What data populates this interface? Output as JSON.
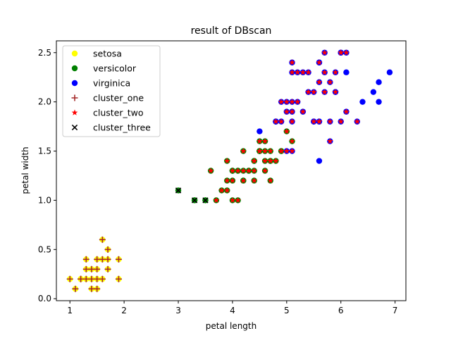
{
  "chart_data": {
    "type": "scatter",
    "title": "result of DBscan",
    "xlabel": "petal length",
    "ylabel": "petal width",
    "xlim": [
      0.75,
      7.2
    ],
    "ylim": [
      -0.02,
      2.62
    ],
    "xticks": [
      1,
      2,
      3,
      4,
      5,
      6,
      7
    ],
    "yticks": [
      0.0,
      0.5,
      1.0,
      1.5,
      2.0,
      2.5
    ],
    "xtick_labels": [
      "1",
      "2",
      "3",
      "4",
      "5",
      "6",
      "7"
    ],
    "ytick_labels": [
      "0.0",
      "0.5",
      "1.0",
      "1.5",
      "2.0",
      "2.5"
    ],
    "grid": false,
    "legend_position": "top-left",
    "series": [
      {
        "name": "setosa",
        "marker": "circle",
        "color": "#ffff00",
        "points": [
          [
            1.4,
            0.2
          ],
          [
            1.3,
            0.2
          ],
          [
            1.5,
            0.2
          ],
          [
            1.7,
            0.4
          ],
          [
            1.4,
            0.3
          ],
          [
            1.5,
            0.1
          ],
          [
            1.6,
            0.2
          ],
          [
            1.1,
            0.1
          ],
          [
            1.2,
            0.2
          ],
          [
            1.5,
            0.4
          ],
          [
            1.3,
            0.4
          ],
          [
            1.7,
            0.3
          ],
          [
            1.5,
            0.3
          ],
          [
            1.9,
            0.2
          ],
          [
            1.6,
            0.4
          ],
          [
            1.0,
            0.2
          ],
          [
            1.7,
            0.5
          ],
          [
            1.9,
            0.4
          ],
          [
            1.6,
            0.6
          ],
          [
            1.3,
            0.3
          ],
          [
            1.4,
            0.1
          ],
          [
            1.2,
            0.2
          ]
        ]
      },
      {
        "name": "versicolor",
        "marker": "circle",
        "color": "#008000",
        "points": [
          [
            4.7,
            1.4
          ],
          [
            4.5,
            1.5
          ],
          [
            4.9,
            1.5
          ],
          [
            4.0,
            1.3
          ],
          [
            4.6,
            1.5
          ],
          [
            3.3,
            1.0
          ],
          [
            4.6,
            1.3
          ],
          [
            3.9,
            1.4
          ],
          [
            3.5,
            1.0
          ],
          [
            4.2,
            1.5
          ],
          [
            4.0,
            1.0
          ],
          [
            4.7,
            1.4
          ],
          [
            3.6,
            1.3
          ],
          [
            4.4,
            1.4
          ],
          [
            4.5,
            1.5
          ],
          [
            4.1,
            1.0
          ],
          [
            4.5,
            1.5
          ],
          [
            3.9,
            1.1
          ],
          [
            4.8,
            1.8
          ],
          [
            4.0,
            1.3
          ],
          [
            4.9,
            1.5
          ],
          [
            4.7,
            1.2
          ],
          [
            4.3,
            1.3
          ],
          [
            4.4,
            1.4
          ],
          [
            4.8,
            1.4
          ],
          [
            5.0,
            1.7
          ],
          [
            4.5,
            1.5
          ],
          [
            3.5,
            1.0
          ],
          [
            3.8,
            1.1
          ],
          [
            3.7,
            1.0
          ],
          [
            3.9,
            1.2
          ],
          [
            5.1,
            1.6
          ],
          [
            4.5,
            1.5
          ],
          [
            4.5,
            1.6
          ],
          [
            4.7,
            1.5
          ],
          [
            4.4,
            1.3
          ],
          [
            4.1,
            1.3
          ],
          [
            4.0,
            1.3
          ],
          [
            4.4,
            1.2
          ],
          [
            4.6,
            1.4
          ],
          [
            4.0,
            1.2
          ],
          [
            3.3,
            1.0
          ],
          [
            4.2,
            1.3
          ],
          [
            4.2,
            1.2
          ],
          [
            4.3,
            1.3
          ],
          [
            3.0,
            1.1
          ],
          [
            4.1,
            1.3
          ],
          [
            4.6,
            1.6
          ],
          [
            4.2,
            1.2
          ]
        ]
      },
      {
        "name": "virginica",
        "marker": "circle",
        "color": "#0000ff",
        "points": [
          [
            6.0,
            2.5
          ],
          [
            5.1,
            1.9
          ],
          [
            5.9,
            2.1
          ],
          [
            5.6,
            1.8
          ],
          [
            5.8,
            2.2
          ],
          [
            6.6,
            2.1
          ],
          [
            4.5,
            1.7
          ],
          [
            6.3,
            1.8
          ],
          [
            5.8,
            1.8
          ],
          [
            6.1,
            2.5
          ],
          [
            5.1,
            2.0
          ],
          [
            5.3,
            1.9
          ],
          [
            5.5,
            2.1
          ],
          [
            5.0,
            2.0
          ],
          [
            5.1,
            2.4
          ],
          [
            5.3,
            2.3
          ],
          [
            5.5,
            1.8
          ],
          [
            6.7,
            2.2
          ],
          [
            6.9,
            2.3
          ],
          [
            5.0,
            1.5
          ],
          [
            5.7,
            2.3
          ],
          [
            4.9,
            2.0
          ],
          [
            6.7,
            2.0
          ],
          [
            4.9,
            1.8
          ],
          [
            5.7,
            2.1
          ],
          [
            6.0,
            1.8
          ],
          [
            4.8,
            1.8
          ],
          [
            5.8,
            1.6
          ],
          [
            6.1,
            1.9
          ],
          [
            6.4,
            2.0
          ],
          [
            5.6,
            2.2
          ],
          [
            5.1,
            1.5
          ],
          [
            5.6,
            1.4
          ],
          [
            6.1,
            2.3
          ],
          [
            5.6,
            2.4
          ],
          [
            5.5,
            1.8
          ],
          [
            5.4,
            2.1
          ],
          [
            5.6,
            2.4
          ],
          [
            5.1,
            2.3
          ],
          [
            5.9,
            2.3
          ],
          [
            5.7,
            2.5
          ],
          [
            5.2,
            2.3
          ],
          [
            5.0,
            1.9
          ],
          [
            5.2,
            2.0
          ],
          [
            5.4,
            2.3
          ],
          [
            5.1,
            1.8
          ],
          [
            4.8,
            1.8
          ],
          [
            6.0,
            2.5
          ],
          [
            5.6,
            1.8
          ],
          [
            5.9,
            2.1
          ]
        ]
      },
      {
        "name": "cluster_one",
        "marker": "plus",
        "color": "#a52a2a",
        "points": [
          [
            1.4,
            0.2
          ],
          [
            1.3,
            0.2
          ],
          [
            1.5,
            0.2
          ],
          [
            1.7,
            0.4
          ],
          [
            1.4,
            0.3
          ],
          [
            1.5,
            0.1
          ],
          [
            1.6,
            0.2
          ],
          [
            1.1,
            0.1
          ],
          [
            1.2,
            0.2
          ],
          [
            1.5,
            0.4
          ],
          [
            1.3,
            0.4
          ],
          [
            1.7,
            0.3
          ],
          [
            1.5,
            0.3
          ],
          [
            1.9,
            0.2
          ],
          [
            1.6,
            0.4
          ],
          [
            1.0,
            0.2
          ],
          [
            1.7,
            0.5
          ],
          [
            1.9,
            0.4
          ],
          [
            1.6,
            0.6
          ],
          [
            1.3,
            0.3
          ],
          [
            1.4,
            0.1
          ],
          [
            1.2,
            0.2
          ]
        ]
      },
      {
        "name": "cluster_two",
        "marker": "star",
        "color": "#ff0000",
        "points": [
          [
            4.7,
            1.4
          ],
          [
            4.5,
            1.5
          ],
          [
            4.9,
            1.5
          ],
          [
            4.0,
            1.3
          ],
          [
            4.6,
            1.5
          ],
          [
            4.6,
            1.3
          ],
          [
            3.9,
            1.4
          ],
          [
            4.2,
            1.5
          ],
          [
            4.0,
            1.0
          ],
          [
            4.7,
            1.4
          ],
          [
            3.6,
            1.3
          ],
          [
            4.4,
            1.4
          ],
          [
            4.5,
            1.5
          ],
          [
            4.1,
            1.0
          ],
          [
            3.9,
            1.1
          ],
          [
            4.8,
            1.8
          ],
          [
            4.9,
            1.5
          ],
          [
            4.7,
            1.2
          ],
          [
            4.3,
            1.3
          ],
          [
            4.4,
            1.4
          ],
          [
            4.8,
            1.4
          ],
          [
            5.0,
            1.7
          ],
          [
            3.8,
            1.1
          ],
          [
            3.7,
            1.0
          ],
          [
            3.9,
            1.2
          ],
          [
            5.1,
            1.6
          ],
          [
            4.5,
            1.6
          ],
          [
            4.7,
            1.5
          ],
          [
            4.4,
            1.3
          ],
          [
            4.1,
            1.3
          ],
          [
            4.4,
            1.2
          ],
          [
            4.6,
            1.4
          ],
          [
            4.0,
            1.2
          ],
          [
            4.2,
            1.3
          ],
          [
            4.2,
            1.2
          ],
          [
            4.6,
            1.6
          ],
          [
            6.0,
            2.5
          ],
          [
            5.1,
            1.9
          ],
          [
            5.9,
            2.1
          ],
          [
            5.6,
            1.8
          ],
          [
            5.8,
            2.2
          ],
          [
            6.3,
            1.8
          ],
          [
            5.8,
            1.8
          ],
          [
            6.1,
            2.5
          ],
          [
            5.1,
            2.0
          ],
          [
            5.3,
            1.9
          ],
          [
            5.5,
            2.1
          ],
          [
            5.0,
            2.0
          ],
          [
            5.1,
            2.4
          ],
          [
            5.3,
            2.3
          ],
          [
            5.5,
            1.8
          ],
          [
            5.0,
            1.5
          ],
          [
            5.7,
            2.3
          ],
          [
            4.9,
            2.0
          ],
          [
            4.9,
            1.8
          ],
          [
            5.7,
            2.1
          ],
          [
            6.0,
            1.8
          ],
          [
            5.8,
            1.6
          ],
          [
            6.1,
            1.9
          ],
          [
            5.6,
            2.2
          ],
          [
            5.1,
            1.5
          ],
          [
            5.6,
            2.4
          ],
          [
            5.4,
            2.1
          ],
          [
            5.1,
            2.3
          ],
          [
            5.9,
            2.3
          ],
          [
            5.7,
            2.5
          ],
          [
            5.2,
            2.3
          ],
          [
            5.2,
            2.0
          ],
          [
            5.4,
            2.3
          ],
          [
            5.1,
            1.8
          ],
          [
            6.0,
            2.5
          ],
          [
            5.6,
            1.8
          ],
          [
            5.0,
            1.9
          ]
        ]
      },
      {
        "name": "cluster_three",
        "marker": "x",
        "color": "#000000",
        "points": [
          [
            3.0,
            1.1
          ],
          [
            3.3,
            1.0
          ],
          [
            3.5,
            1.0
          ]
        ]
      }
    ]
  }
}
